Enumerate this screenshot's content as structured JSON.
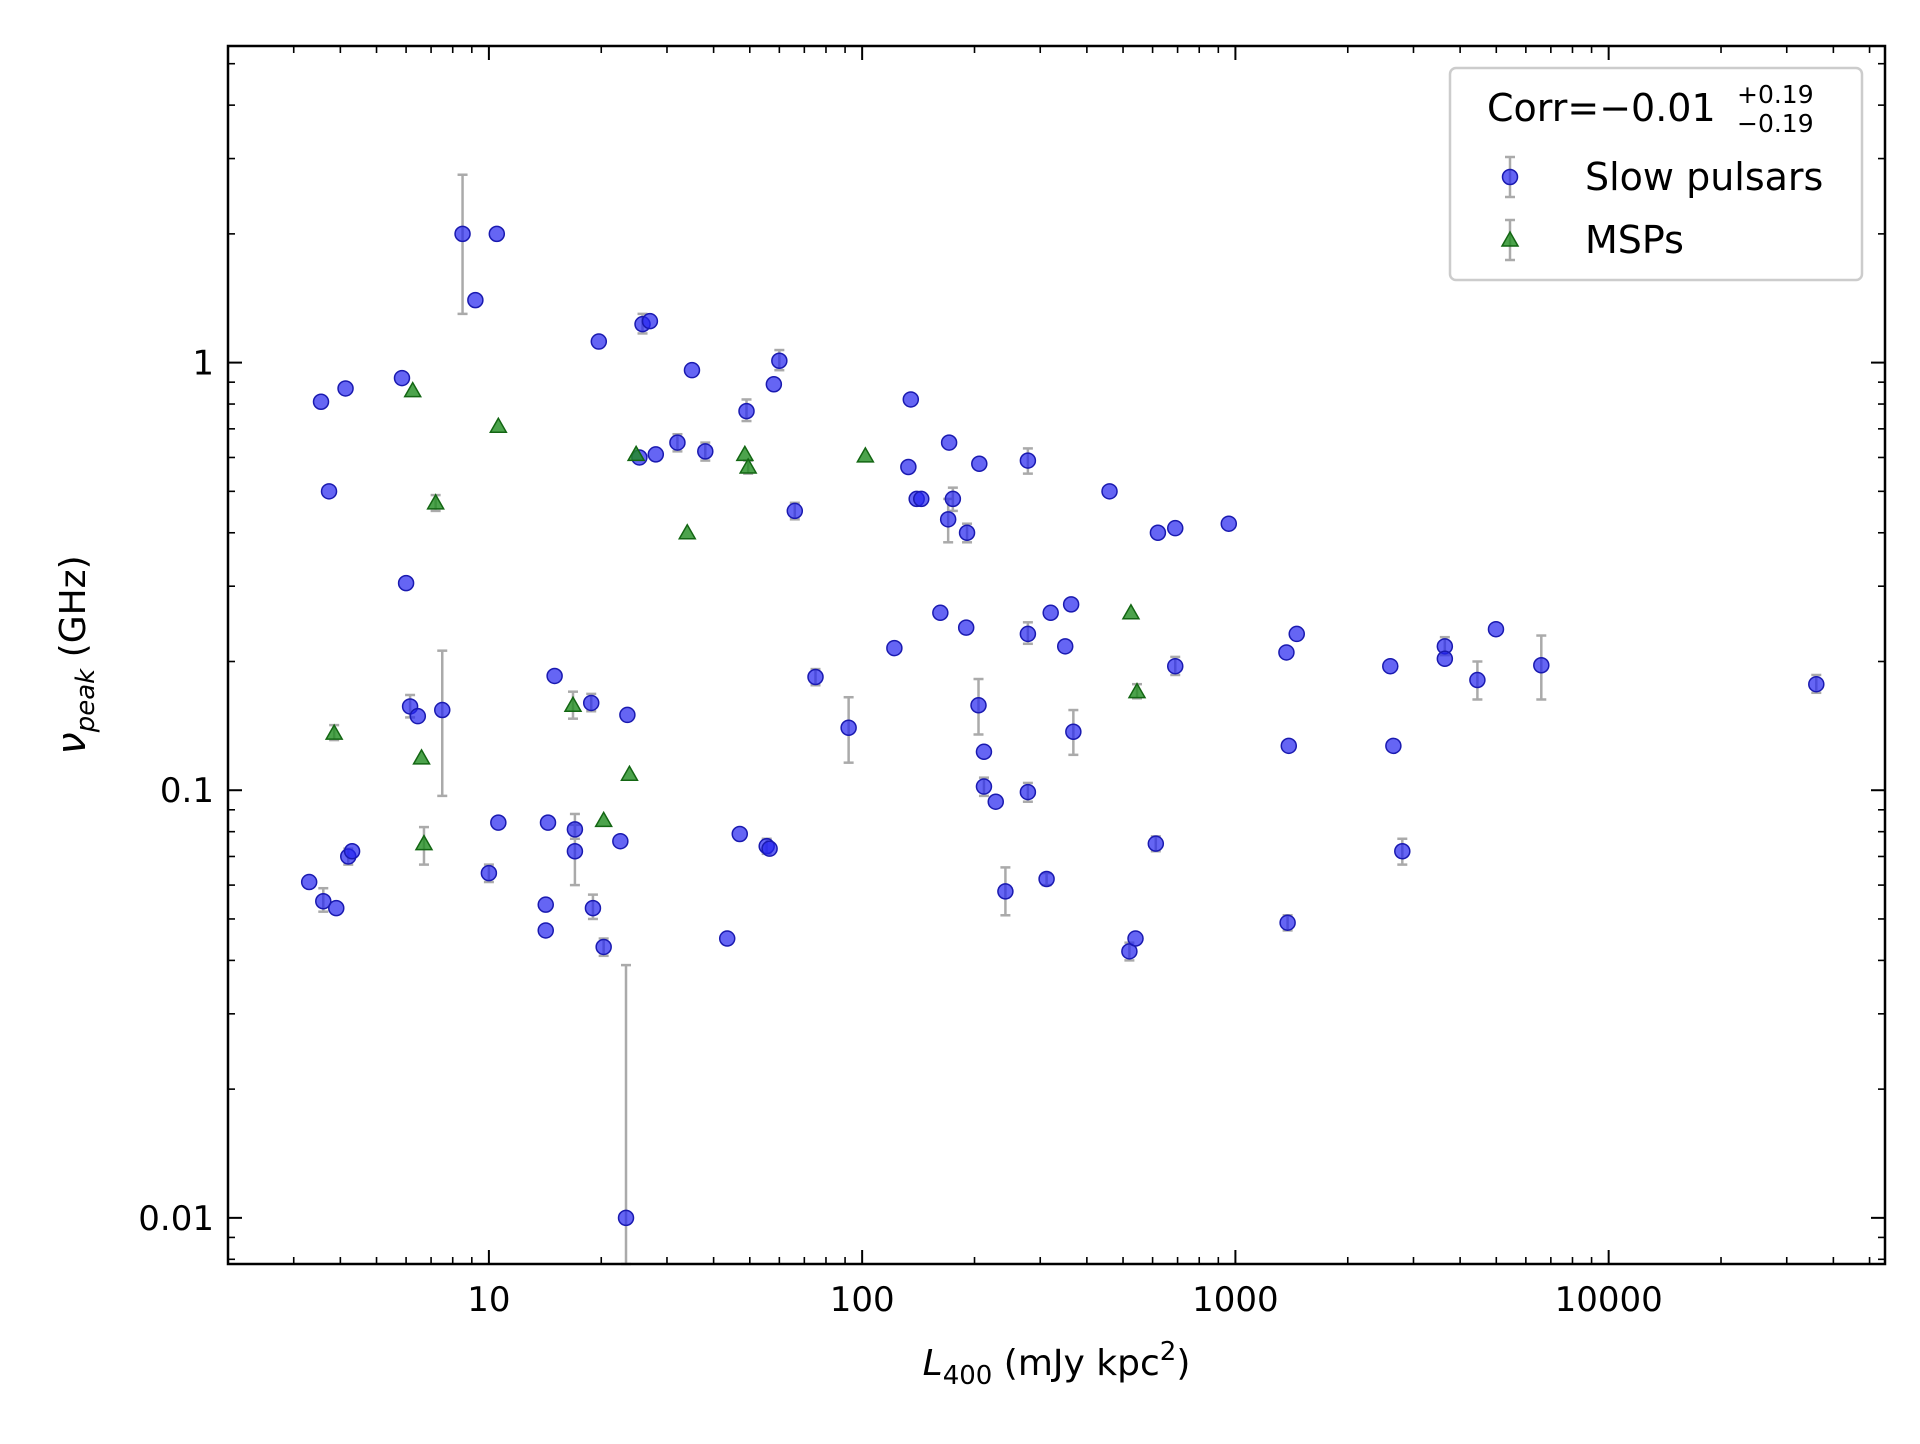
{
  "chart_data": {
    "type": "scatter",
    "x_scale": "log",
    "y_scale": "log",
    "xlim": [
      2,
      55000
    ],
    "ylim": [
      0.0078,
      5.5
    ],
    "x_ticks": [
      10,
      100,
      1000,
      10000
    ],
    "x_tick_labels": [
      "10",
      "100",
      "1000",
      "10000"
    ],
    "y_ticks": [
      0.01,
      0.1,
      1
    ],
    "y_tick_labels": [
      "0.01",
      "0.1",
      "1"
    ],
    "xlabel": {
      "main": "L",
      "sub": "400",
      "rest": " (mJy kpc",
      "sup": "2",
      "end": ")"
    },
    "ylabel": {
      "main": "ν",
      "sub": "peak",
      "rest": " (GHz)"
    },
    "grid": false,
    "legend": {
      "placement": "top-right",
      "title": {
        "main": "Corr=−0.01",
        "sup": "+0.19",
        "sub": "−0.19"
      }
    },
    "series": [
      {
        "name": "Slow pulsars",
        "marker": "circle",
        "color": "#2323f0",
        "points": [
          {
            "x": 3.55,
            "y": 0.81
          },
          {
            "x": 3.73,
            "y": 0.5
          },
          {
            "x": 4.13,
            "y": 0.87
          },
          {
            "x": 5.85,
            "y": 0.92
          },
          {
            "x": 6.0,
            "y": 0.305
          },
          {
            "x": 8.5,
            "y": 2.0,
            "lo": 1.3,
            "hi": 2.75
          },
          {
            "x": 9.2,
            "y": 1.4
          },
          {
            "x": 10.5,
            "y": 2.0
          },
          {
            "x": 19.7,
            "y": 1.12
          },
          {
            "x": 25.8,
            "y": 1.23,
            "lo": 1.17,
            "hi": 1.3
          },
          {
            "x": 27.0,
            "y": 1.25
          },
          {
            "x": 35.0,
            "y": 0.96
          },
          {
            "x": 60.0,
            "y": 1.01,
            "lo": 0.96,
            "hi": 1.07
          },
          {
            "x": 58.0,
            "y": 0.89
          },
          {
            "x": 49.0,
            "y": 0.77,
            "lo": 0.73,
            "hi": 0.82
          },
          {
            "x": 32.0,
            "y": 0.65,
            "lo": 0.62,
            "hi": 0.68
          },
          {
            "x": 38.0,
            "y": 0.62,
            "lo": 0.59,
            "hi": 0.65
          },
          {
            "x": 28.0,
            "y": 0.61
          },
          {
            "x": 25.3,
            "y": 0.6
          },
          {
            "x": 66.0,
            "y": 0.45,
            "lo": 0.43,
            "hi": 0.47
          },
          {
            "x": 135.0,
            "y": 0.82
          },
          {
            "x": 133.0,
            "y": 0.57
          },
          {
            "x": 171.0,
            "y": 0.65
          },
          {
            "x": 206.0,
            "y": 0.58
          },
          {
            "x": 278.0,
            "y": 0.59,
            "lo": 0.55,
            "hi": 0.63
          },
          {
            "x": 140.0,
            "y": 0.48
          },
          {
            "x": 144.0,
            "y": 0.48
          },
          {
            "x": 175.0,
            "y": 0.48,
            "lo": 0.45,
            "hi": 0.51
          },
          {
            "x": 170.0,
            "y": 0.43,
            "lo": 0.38,
            "hi": 0.48
          },
          {
            "x": 191.0,
            "y": 0.4,
            "lo": 0.38,
            "hi": 0.42
          },
          {
            "x": 460.0,
            "y": 0.5
          },
          {
            "x": 620.0,
            "y": 0.4
          },
          {
            "x": 690.0,
            "y": 0.41
          },
          {
            "x": 960.0,
            "y": 0.42
          },
          {
            "x": 162.0,
            "y": 0.26
          },
          {
            "x": 190.0,
            "y": 0.24
          },
          {
            "x": 122.0,
            "y": 0.215
          },
          {
            "x": 278.0,
            "y": 0.232,
            "lo": 0.22,
            "hi": 0.247
          },
          {
            "x": 320.0,
            "y": 0.26
          },
          {
            "x": 363.0,
            "y": 0.272
          },
          {
            "x": 350.0,
            "y": 0.217
          },
          {
            "x": 690.0,
            "y": 0.195,
            "lo": 0.186,
            "hi": 0.205
          },
          {
            "x": 1370.0,
            "y": 0.21
          },
          {
            "x": 1460.0,
            "y": 0.232
          },
          {
            "x": 2600.0,
            "y": 0.195
          },
          {
            "x": 3640.0,
            "y": 0.217,
            "lo": 0.207,
            "hi": 0.228
          },
          {
            "x": 3640.0,
            "y": 0.203
          },
          {
            "x": 4990.0,
            "y": 0.238
          },
          {
            "x": 4450.0,
            "y": 0.181,
            "lo": 0.163,
            "hi": 0.2
          },
          {
            "x": 6600.0,
            "y": 0.196,
            "lo": 0.163,
            "hi": 0.23
          },
          {
            "x": 36000.0,
            "y": 0.177,
            "lo": 0.169,
            "hi": 0.186
          },
          {
            "x": 15.0,
            "y": 0.185
          },
          {
            "x": 6.15,
            "y": 0.157,
            "lo": 0.148,
            "hi": 0.167
          },
          {
            "x": 6.45,
            "y": 0.149
          },
          {
            "x": 7.5,
            "y": 0.154,
            "lo": 0.097,
            "hi": 0.212
          },
          {
            "x": 18.8,
            "y": 0.16,
            "lo": 0.153,
            "hi": 0.168
          },
          {
            "x": 23.5,
            "y": 0.15
          },
          {
            "x": 75.0,
            "y": 0.184,
            "lo": 0.176,
            "hi": 0.192
          },
          {
            "x": 92.0,
            "y": 0.14,
            "lo": 0.116,
            "hi": 0.165
          },
          {
            "x": 205.0,
            "y": 0.158,
            "lo": 0.135,
            "hi": 0.182
          },
          {
            "x": 212.0,
            "y": 0.123
          },
          {
            "x": 212.0,
            "y": 0.102,
            "lo": 0.097,
            "hi": 0.107
          },
          {
            "x": 228.0,
            "y": 0.094
          },
          {
            "x": 278.0,
            "y": 0.099,
            "lo": 0.094,
            "hi": 0.104
          },
          {
            "x": 368.0,
            "y": 0.137,
            "lo": 0.121,
            "hi": 0.154
          },
          {
            "x": 1390.0,
            "y": 0.127
          },
          {
            "x": 2650.0,
            "y": 0.127
          },
          {
            "x": 3.3,
            "y": 0.061
          },
          {
            "x": 3.6,
            "y": 0.055,
            "lo": 0.052,
            "hi": 0.059
          },
          {
            "x": 3.9,
            "y": 0.053
          },
          {
            "x": 4.2,
            "y": 0.07,
            "lo": 0.067,
            "hi": 0.073
          },
          {
            "x": 4.3,
            "y": 0.072
          },
          {
            "x": 10.0,
            "y": 0.064,
            "lo": 0.061,
            "hi": 0.067
          },
          {
            "x": 10.6,
            "y": 0.084
          },
          {
            "x": 14.4,
            "y": 0.084
          },
          {
            "x": 17.0,
            "y": 0.081,
            "lo": 0.077,
            "hi": 0.088
          },
          {
            "x": 17.0,
            "y": 0.072,
            "lo": 0.06,
            "hi": 0.083
          },
          {
            "x": 14.2,
            "y": 0.054
          },
          {
            "x": 14.2,
            "y": 0.047
          },
          {
            "x": 19.0,
            "y": 0.053,
            "lo": 0.05,
            "hi": 0.057
          },
          {
            "x": 20.3,
            "y": 0.043,
            "lo": 0.041,
            "hi": 0.045
          },
          {
            "x": 22.5,
            "y": 0.076
          },
          {
            "x": 47.0,
            "y": 0.079
          },
          {
            "x": 55.5,
            "y": 0.074,
            "lo": 0.071,
            "hi": 0.077
          },
          {
            "x": 56.5,
            "y": 0.073
          },
          {
            "x": 43.5,
            "y": 0.045
          },
          {
            "x": 23.3,
            "y": 0.01,
            "lo": 0.0078,
            "hi": 0.039
          },
          {
            "x": 242.0,
            "y": 0.058,
            "lo": 0.051,
            "hi": 0.066
          },
          {
            "x": 312.0,
            "y": 0.062,
            "lo": 0.06,
            "hi": 0.064
          },
          {
            "x": 612.0,
            "y": 0.075,
            "lo": 0.072,
            "hi": 0.078
          },
          {
            "x": 520.0,
            "y": 0.042,
            "lo": 0.04,
            "hi": 0.044
          },
          {
            "x": 540.0,
            "y": 0.045
          },
          {
            "x": 1380.0,
            "y": 0.049,
            "lo": 0.047,
            "hi": 0.051
          },
          {
            "x": 2800.0,
            "y": 0.072,
            "lo": 0.067,
            "hi": 0.077
          }
        ]
      },
      {
        "name": "MSPs",
        "marker": "triangle",
        "color": "#1f8c1f",
        "points": [
          {
            "x": 6.25,
            "y": 0.86
          },
          {
            "x": 10.6,
            "y": 0.71
          },
          {
            "x": 7.2,
            "y": 0.47,
            "lo": 0.45,
            "hi": 0.49
          },
          {
            "x": 24.8,
            "y": 0.61
          },
          {
            "x": 48.5,
            "y": 0.61
          },
          {
            "x": 49.5,
            "y": 0.57,
            "lo": 0.55,
            "hi": 0.59
          },
          {
            "x": 102.0,
            "y": 0.605
          },
          {
            "x": 34.0,
            "y": 0.4
          },
          {
            "x": 525.0,
            "y": 0.26
          },
          {
            "x": 545.0,
            "y": 0.17,
            "lo": 0.164,
            "hi": 0.177
          },
          {
            "x": 3.85,
            "y": 0.136,
            "lo": 0.131,
            "hi": 0.142
          },
          {
            "x": 6.6,
            "y": 0.119
          },
          {
            "x": 16.8,
            "y": 0.158,
            "lo": 0.147,
            "hi": 0.17
          },
          {
            "x": 23.8,
            "y": 0.109
          },
          {
            "x": 20.3,
            "y": 0.085
          },
          {
            "x": 6.7,
            "y": 0.075,
            "lo": 0.067,
            "hi": 0.082
          }
        ]
      }
    ]
  }
}
